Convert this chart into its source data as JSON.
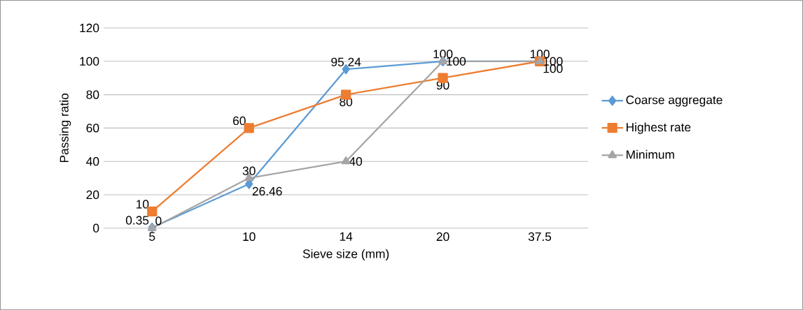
{
  "chart_data": {
    "type": "line",
    "xlabel": "Sieve size (mm)",
    "ylabel": "Passing ratio",
    "categories": [
      "5",
      "10",
      "14",
      "20",
      "37.5"
    ],
    "series": [
      {
        "name": "Coarse aggregate",
        "color": "#5b9bd5",
        "marker": "diamond",
        "values": [
          0.35,
          26.46,
          95.24,
          100,
          100
        ]
      },
      {
        "name": "Highest rate",
        "color": "#ed7d31",
        "marker": "square",
        "values": [
          10,
          60,
          80,
          90,
          100
        ]
      },
      {
        "name": "Minimum",
        "color": "#a5a5a5",
        "marker": "triangle",
        "values": [
          0,
          30,
          40,
          100,
          100
        ]
      }
    ],
    "ylim": [
      0,
      120
    ],
    "yticks": [
      0,
      20,
      40,
      60,
      80,
      100,
      120
    ],
    "grid": "y",
    "legend": "right",
    "data_labels": true,
    "line_style": "solid"
  }
}
